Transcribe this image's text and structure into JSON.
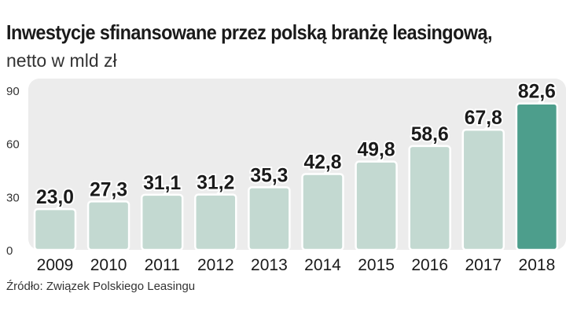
{
  "header": {
    "title": "Inwestycje sfinansowane przez polską branżę leasingową,",
    "subtitle": "netto w mld zł"
  },
  "footer": {
    "source": "Źródło: Związek Polskiego Leasingu"
  },
  "colors": {
    "bar": "#c3d9d1",
    "highlight_bar": "#4d9e8c",
    "panel": "#ececec",
    "text": "#1a1a1a"
  },
  "chart_data": {
    "type": "bar",
    "title": "Inwestycje sfinansowane przez polską branżę leasingową,",
    "subtitle": "netto w mld zł",
    "categories": [
      "2009",
      "2010",
      "2011",
      "2012",
      "2013",
      "2014",
      "2015",
      "2016",
      "2017",
      "2018"
    ],
    "values": [
      23.0,
      27.3,
      31.1,
      31.2,
      35.3,
      42.8,
      49.8,
      58.6,
      67.8,
      82.6
    ],
    "value_labels": [
      "23,0",
      "27,3",
      "31,1",
      "31,2",
      "35,3",
      "42,8",
      "49,8",
      "58,6",
      "67,8",
      "82,6"
    ],
    "highlight": "2018",
    "yticks": [
      "0",
      "30",
      "60",
      "90"
    ],
    "ylim": [
      0,
      90
    ],
    "xlabel": "",
    "ylabel": "",
    "grid": false,
    "legend": "none"
  }
}
